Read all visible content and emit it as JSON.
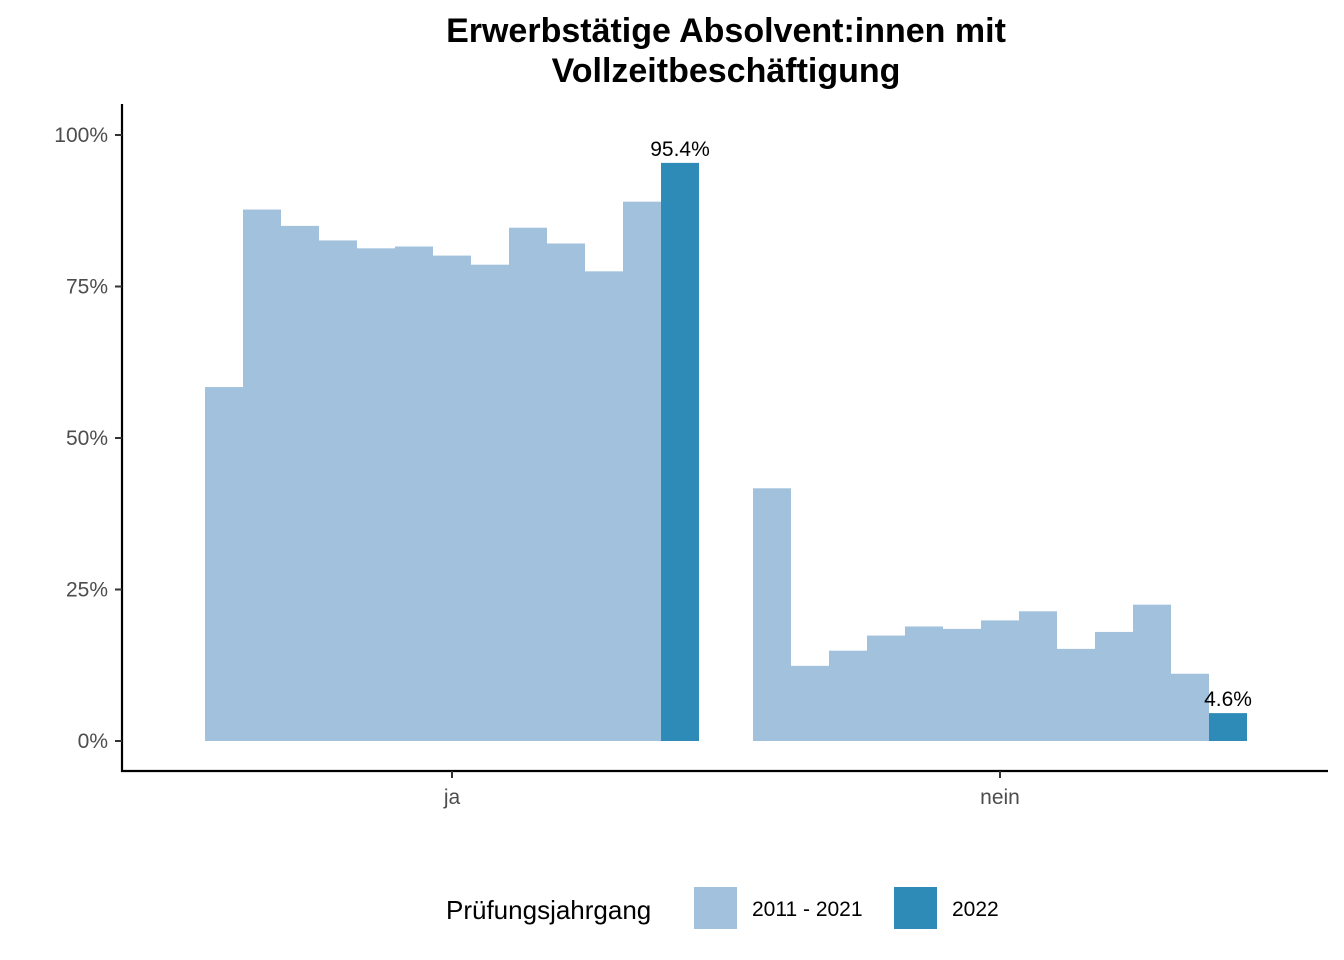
{
  "chart_data": {
    "type": "bar",
    "title": [
      "Erwerbstätige Absolvent:innen mit",
      "Vollzeitbeschäftigung"
    ],
    "xlabel": "",
    "ylabel": "",
    "categories": [
      "ja",
      "nein"
    ],
    "ylim": [
      0,
      1.05
    ],
    "y_ticks": [
      {
        "value": 0,
        "label": "0%"
      },
      {
        "value": 0.25,
        "label": "25%"
      },
      {
        "value": 0.5,
        "label": "50%"
      },
      {
        "value": 0.75,
        "label": "75%"
      },
      {
        "value": 1.0,
        "label": "100%"
      }
    ],
    "groups": [
      {
        "category": "ja",
        "values": [
          0.584,
          0.877,
          0.85,
          0.826,
          0.813,
          0.816,
          0.801,
          0.786,
          0.847,
          0.821,
          0.775,
          0.89,
          0.954
        ],
        "series": [
          "2011 - 2021",
          "2011 - 2021",
          "2011 - 2021",
          "2011 - 2021",
          "2011 - 2021",
          "2011 - 2021",
          "2011 - 2021",
          "2011 - 2021",
          "2011 - 2021",
          "2011 - 2021",
          "2011 - 2021",
          "2011 - 2021",
          "2022"
        ],
        "highlight_label": "95.4%"
      },
      {
        "category": "nein",
        "values": [
          0.417,
          0.124,
          0.149,
          0.174,
          0.189,
          0.185,
          0.199,
          0.214,
          0.152,
          0.18,
          0.225,
          0.111,
          0.046
        ],
        "series": [
          "2011 - 2021",
          "2011 - 2021",
          "2011 - 2021",
          "2011 - 2021",
          "2011 - 2021",
          "2011 - 2021",
          "2011 - 2021",
          "2011 - 2021",
          "2011 - 2021",
          "2011 - 2021",
          "2011 - 2021",
          "2011 - 2021",
          "2022"
        ],
        "highlight_label": "4.6%"
      }
    ],
    "legend": {
      "title": "Prüfungsjahrgang",
      "position": "bottom",
      "entries": [
        {
          "label": "2011 - 2021",
          "color": "#a1c1dc"
        },
        {
          "label": "2022",
          "color": "#2e8ab7"
        }
      ]
    },
    "grid": false
  }
}
